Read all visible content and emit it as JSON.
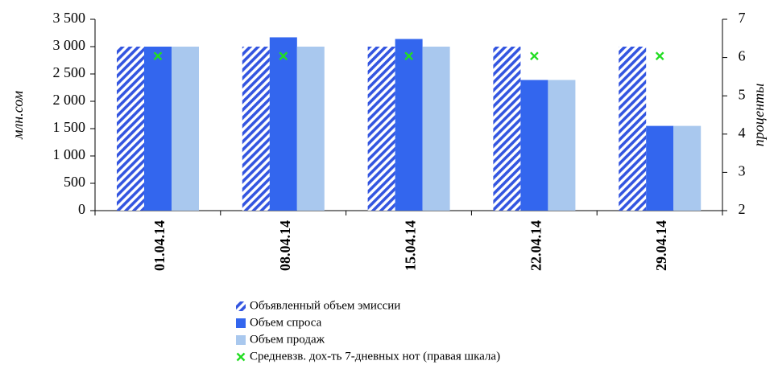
{
  "chart_data": {
    "type": "bar",
    "categories": [
      "01.04.14",
      "08.04.14",
      "15.04.14",
      "22.04.14",
      "29.04.14"
    ],
    "series": [
      {
        "name": "Объявленный объем эмиссии",
        "axis": "left",
        "kind": "bar",
        "pattern": "diagonal-stripes",
        "color": "#3355e0",
        "values": [
          3000,
          3000,
          3000,
          3000,
          3000
        ]
      },
      {
        "name": "Объем спроса",
        "axis": "left",
        "kind": "bar",
        "pattern": "solid",
        "color": "#3366ee",
        "values": [
          3000,
          3170,
          3140,
          2390,
          1550
        ]
      },
      {
        "name": "Объем продаж",
        "axis": "left",
        "kind": "bar",
        "pattern": "solid",
        "color": "#a9c8ee",
        "values": [
          3000,
          3000,
          3000,
          2390,
          1550
        ]
      },
      {
        "name": "Средневзв. дох-ть 7-дневных нот (правая шкала)",
        "axis": "right",
        "kind": "marker",
        "color": "#22dd22",
        "values": [
          6.04,
          6.04,
          6.04,
          6.04,
          6.04
        ]
      }
    ],
    "y_left": {
      "label": "млн.сом",
      "ylim": [
        0,
        3500
      ],
      "ticks": [
        0,
        500,
        1000,
        1500,
        2000,
        2500,
        3000,
        3500
      ],
      "tick_labels": [
        "0",
        "500",
        "1 000",
        "1 500",
        "2 000",
        "2 500",
        "3 000",
        "3 500"
      ]
    },
    "y_right": {
      "label": "проценты",
      "ylim": [
        2,
        7
      ],
      "ticks": [
        2,
        3,
        4,
        5,
        6,
        7
      ],
      "tick_labels": [
        "2",
        "3",
        "4",
        "5",
        "6",
        "7"
      ]
    },
    "grid": false,
    "legend_position": "bottom"
  }
}
